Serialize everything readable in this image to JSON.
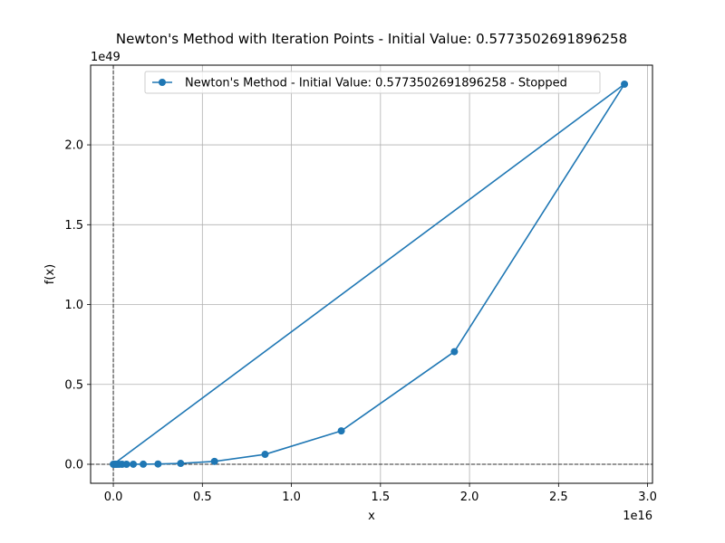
{
  "chart_data": {
    "type": "line",
    "title": "Newton's Method with Iteration Points - Initial Value: 0.5773502691896258",
    "xlabel": "x",
    "ylabel": "f(x)",
    "x_offset_text": "1e16",
    "y_offset_text": "1e49",
    "xlim": [
      -0.1275,
      3.0275
    ],
    "ylim": [
      -0.119,
      2.499
    ],
    "xticks": [
      0.0,
      0.5,
      1.0,
      1.5,
      2.0,
      2.5,
      3.0
    ],
    "xtick_labels": [
      "0.0",
      "0.5",
      "1.0",
      "1.5",
      "2.0",
      "2.5",
      "3.0"
    ],
    "yticks": [
      0.0,
      0.5,
      1.0,
      1.5,
      2.0
    ],
    "ytick_labels": [
      "0.0",
      "0.5",
      "1.0",
      "1.5",
      "2.0"
    ],
    "grid": true,
    "legend_position": "upper-center",
    "reference_lines": {
      "horizontal_y": 0,
      "vertical_x": 0
    },
    "series": [
      {
        "name": "Newton's Method - Initial Value: 0.5773502691896258 - Stopped",
        "color": "#1f77b4",
        "marker": "circle",
        "x": [
          0.0,
          2.87,
          1.915,
          1.28,
          0.852,
          0.568,
          0.378,
          0.251,
          0.168,
          0.112,
          0.074,
          0.049,
          0.033,
          0.022,
          0.015,
          0.01,
          0.006,
          0.004
        ],
        "y": [
          0.0,
          2.38,
          0.705,
          0.209,
          0.062,
          0.018,
          0.0055,
          0.0016,
          0.0005,
          0.0001,
          3e-05,
          1e-05,
          0.0,
          0.0,
          0.0,
          0.0,
          0.0,
          0.0
        ]
      }
    ]
  }
}
